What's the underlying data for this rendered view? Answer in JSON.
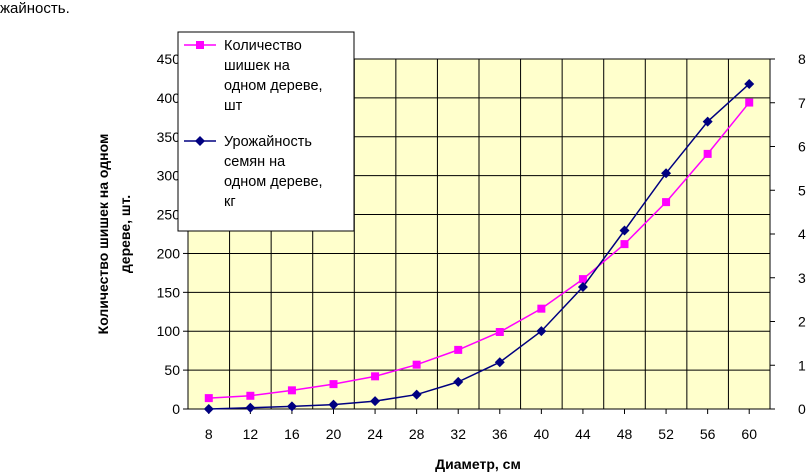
{
  "header": {
    "fragment": "жайность."
  },
  "chart_data": {
    "type": "line",
    "categories": [
      "8",
      "12",
      "16",
      "20",
      "24",
      "28",
      "32",
      "36",
      "40",
      "44",
      "48",
      "52",
      "56",
      "60"
    ],
    "x": [
      8,
      12,
      16,
      20,
      24,
      28,
      32,
      36,
      40,
      44,
      48,
      52,
      56,
      60
    ],
    "xlabel": "Диаметр, см",
    "ylabel_lines": [
      "Количество шишек на одном",
      "дереве, шт."
    ],
    "ylim": [
      0,
      450
    ],
    "y_ticks": [
      0,
      50,
      100,
      150,
      200,
      250,
      300,
      350,
      400,
      450
    ],
    "y2lim": [
      0,
      8
    ],
    "y2_ticks": [
      0,
      1,
      2,
      3,
      4,
      5,
      6,
      7,
      8
    ],
    "grid": true,
    "legend_position": "top-left",
    "series": [
      {
        "name": "Количество шишек на одном дереве, шт",
        "legend_lines": [
          "Количество",
          "шишек на",
          "одном дереве,",
          "шт"
        ],
        "axis": "left",
        "color": "#ff00ff",
        "marker": "square",
        "x": [
          8,
          12,
          16,
          20,
          24,
          28,
          32,
          36,
          40,
          44,
          48,
          52,
          56,
          60
        ],
        "values": [
          14,
          17,
          24,
          32,
          42,
          57,
          76,
          99,
          129,
          167,
          212,
          266,
          328,
          394
        ]
      },
      {
        "name": "Урожайность семян на одном дереве, кг",
        "legend_lines": [
          "Урожайность",
          "семян на",
          "одном дереве,",
          "кг"
        ],
        "axis": "right",
        "color": "#000080",
        "marker": "diamond",
        "x": [
          8,
          12,
          16,
          20,
          24,
          28,
          32,
          36,
          40,
          44,
          48,
          52,
          56,
          60
        ],
        "values": [
          0.0,
          0.03,
          0.06,
          0.1,
          0.18,
          0.33,
          0.62,
          1.07,
          1.78,
          2.79,
          4.08,
          5.39,
          6.57,
          7.43
        ]
      }
    ],
    "colors": {
      "plot_background": "#ffffcc",
      "grid": "#000000"
    }
  }
}
